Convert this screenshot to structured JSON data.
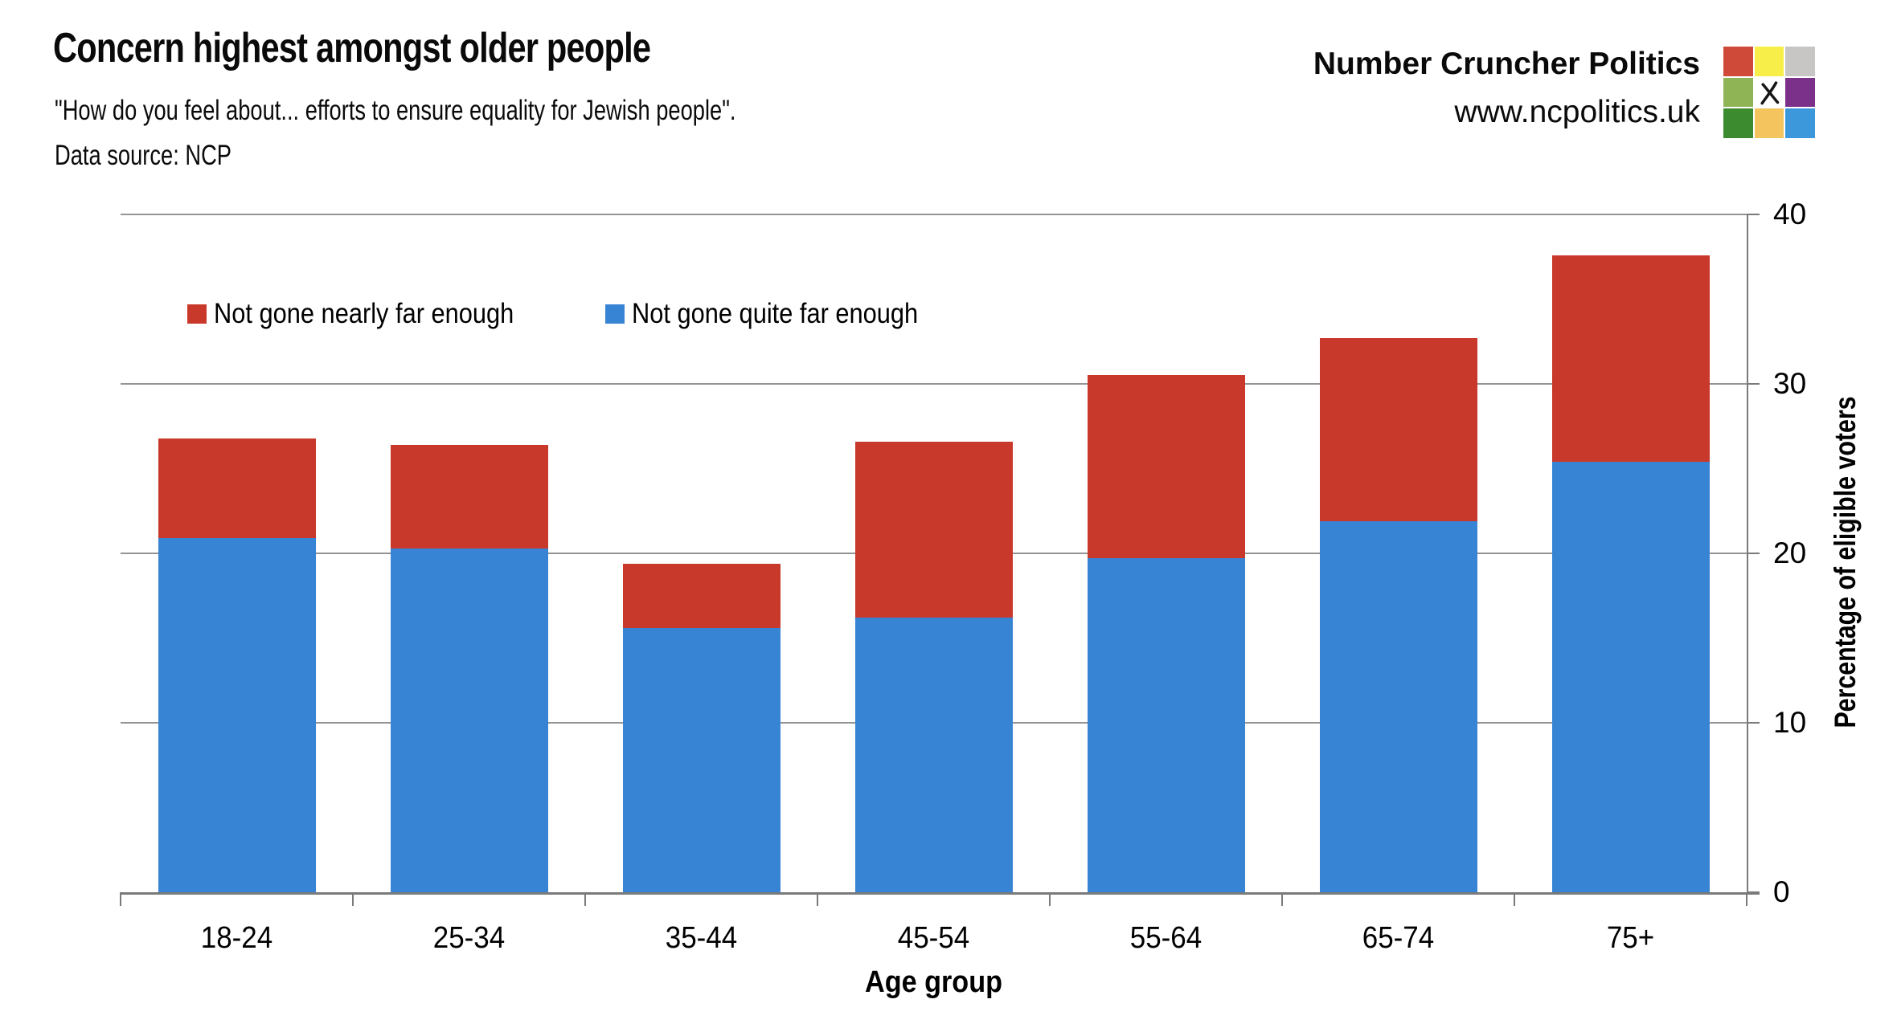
{
  "header": {
    "title": "Concern highest amongst older people",
    "subtitle": "\"How do you feel about... efforts to ensure equality for Jewish people\".",
    "source": "Data source: NCP"
  },
  "brand": {
    "name": "Number Cruncher Politics",
    "url": "www.ncpolitics.uk",
    "logo_cell_colors": [
      "#CF4A38",
      "#F7EE4A",
      "#C8C6C4",
      "#8FB456",
      "#FFFFFF",
      "#7B3089",
      "#3D8B2F",
      "#F4C45F",
      "#3D97DB"
    ],
    "logo_center_icon": "ballot-x"
  },
  "chart_data": {
    "type": "bar",
    "subtype": "stacked-vertical",
    "title": "Concern highest amongst older people",
    "xlabel": "Age group",
    "ylabel": "Percentage of eligible voters",
    "categories": [
      "18-24",
      "25-34",
      "35-44",
      "45-54",
      "55-64",
      "65-74",
      "75+"
    ],
    "series": [
      {
        "name": "Not gone quite far enough",
        "color": "#3884D4",
        "values": [
          20.9,
          20.3,
          15.6,
          16.2,
          19.7,
          21.9,
          25.4
        ]
      },
      {
        "name": "Not gone nearly far enough",
        "color": "#C9392B",
        "values": [
          5.9,
          6.1,
          3.8,
          10.4,
          10.8,
          10.8,
          12.2
        ]
      }
    ],
    "stack_totals": [
      26.8,
      26.4,
      19.4,
      26.6,
      30.5,
      32.7,
      37.6
    ],
    "legend_order": [
      1,
      0
    ],
    "legend_position": "inside-top-left",
    "ylim": [
      0,
      40
    ],
    "yticks": [
      0,
      10,
      20,
      30,
      40
    ],
    "grid": "horizontal",
    "gridline_color": "#949494",
    "axis_color": "#7a7a7a",
    "y_axis_side": "right"
  }
}
